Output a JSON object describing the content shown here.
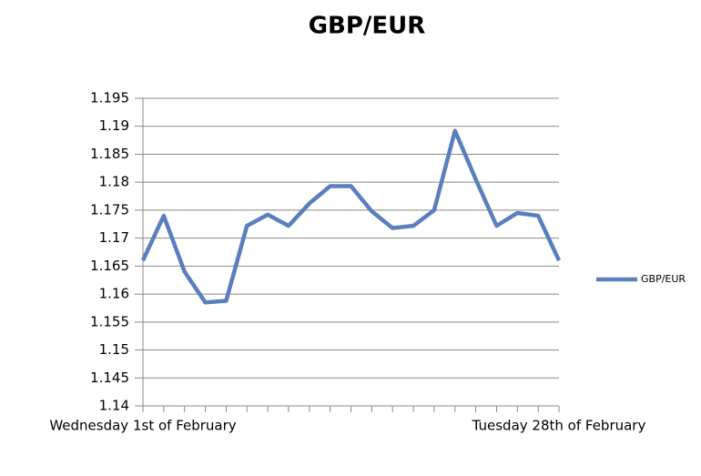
{
  "chart_data": {
    "type": "line",
    "title": "GBP/EUR",
    "categories": [
      "Wednesday 1st of February",
      null,
      null,
      null,
      null,
      null,
      null,
      null,
      null,
      null,
      null,
      null,
      null,
      null,
      null,
      null,
      null,
      null,
      null,
      null,
      "Tuesday 28th of February"
    ],
    "series": [
      {
        "name": "GBP/EUR",
        "color": "#5a7fbd",
        "values": [
          1.166,
          1.174,
          1.164,
          1.1585,
          1.1588,
          1.1722,
          1.1742,
          1.1722,
          1.1762,
          1.1793,
          1.1793,
          1.1748,
          1.1718,
          1.1722,
          1.175,
          1.1892,
          1.1805,
          1.1722,
          1.1745,
          1.174,
          1.166
        ]
      }
    ],
    "ylim": [
      1.14,
      1.195
    ],
    "yticks": [
      1.14,
      1.145,
      1.15,
      1.155,
      1.16,
      1.165,
      1.17,
      1.175,
      1.18,
      1.185,
      1.19,
      1.195
    ],
    "grid": true,
    "legend": "right"
  }
}
